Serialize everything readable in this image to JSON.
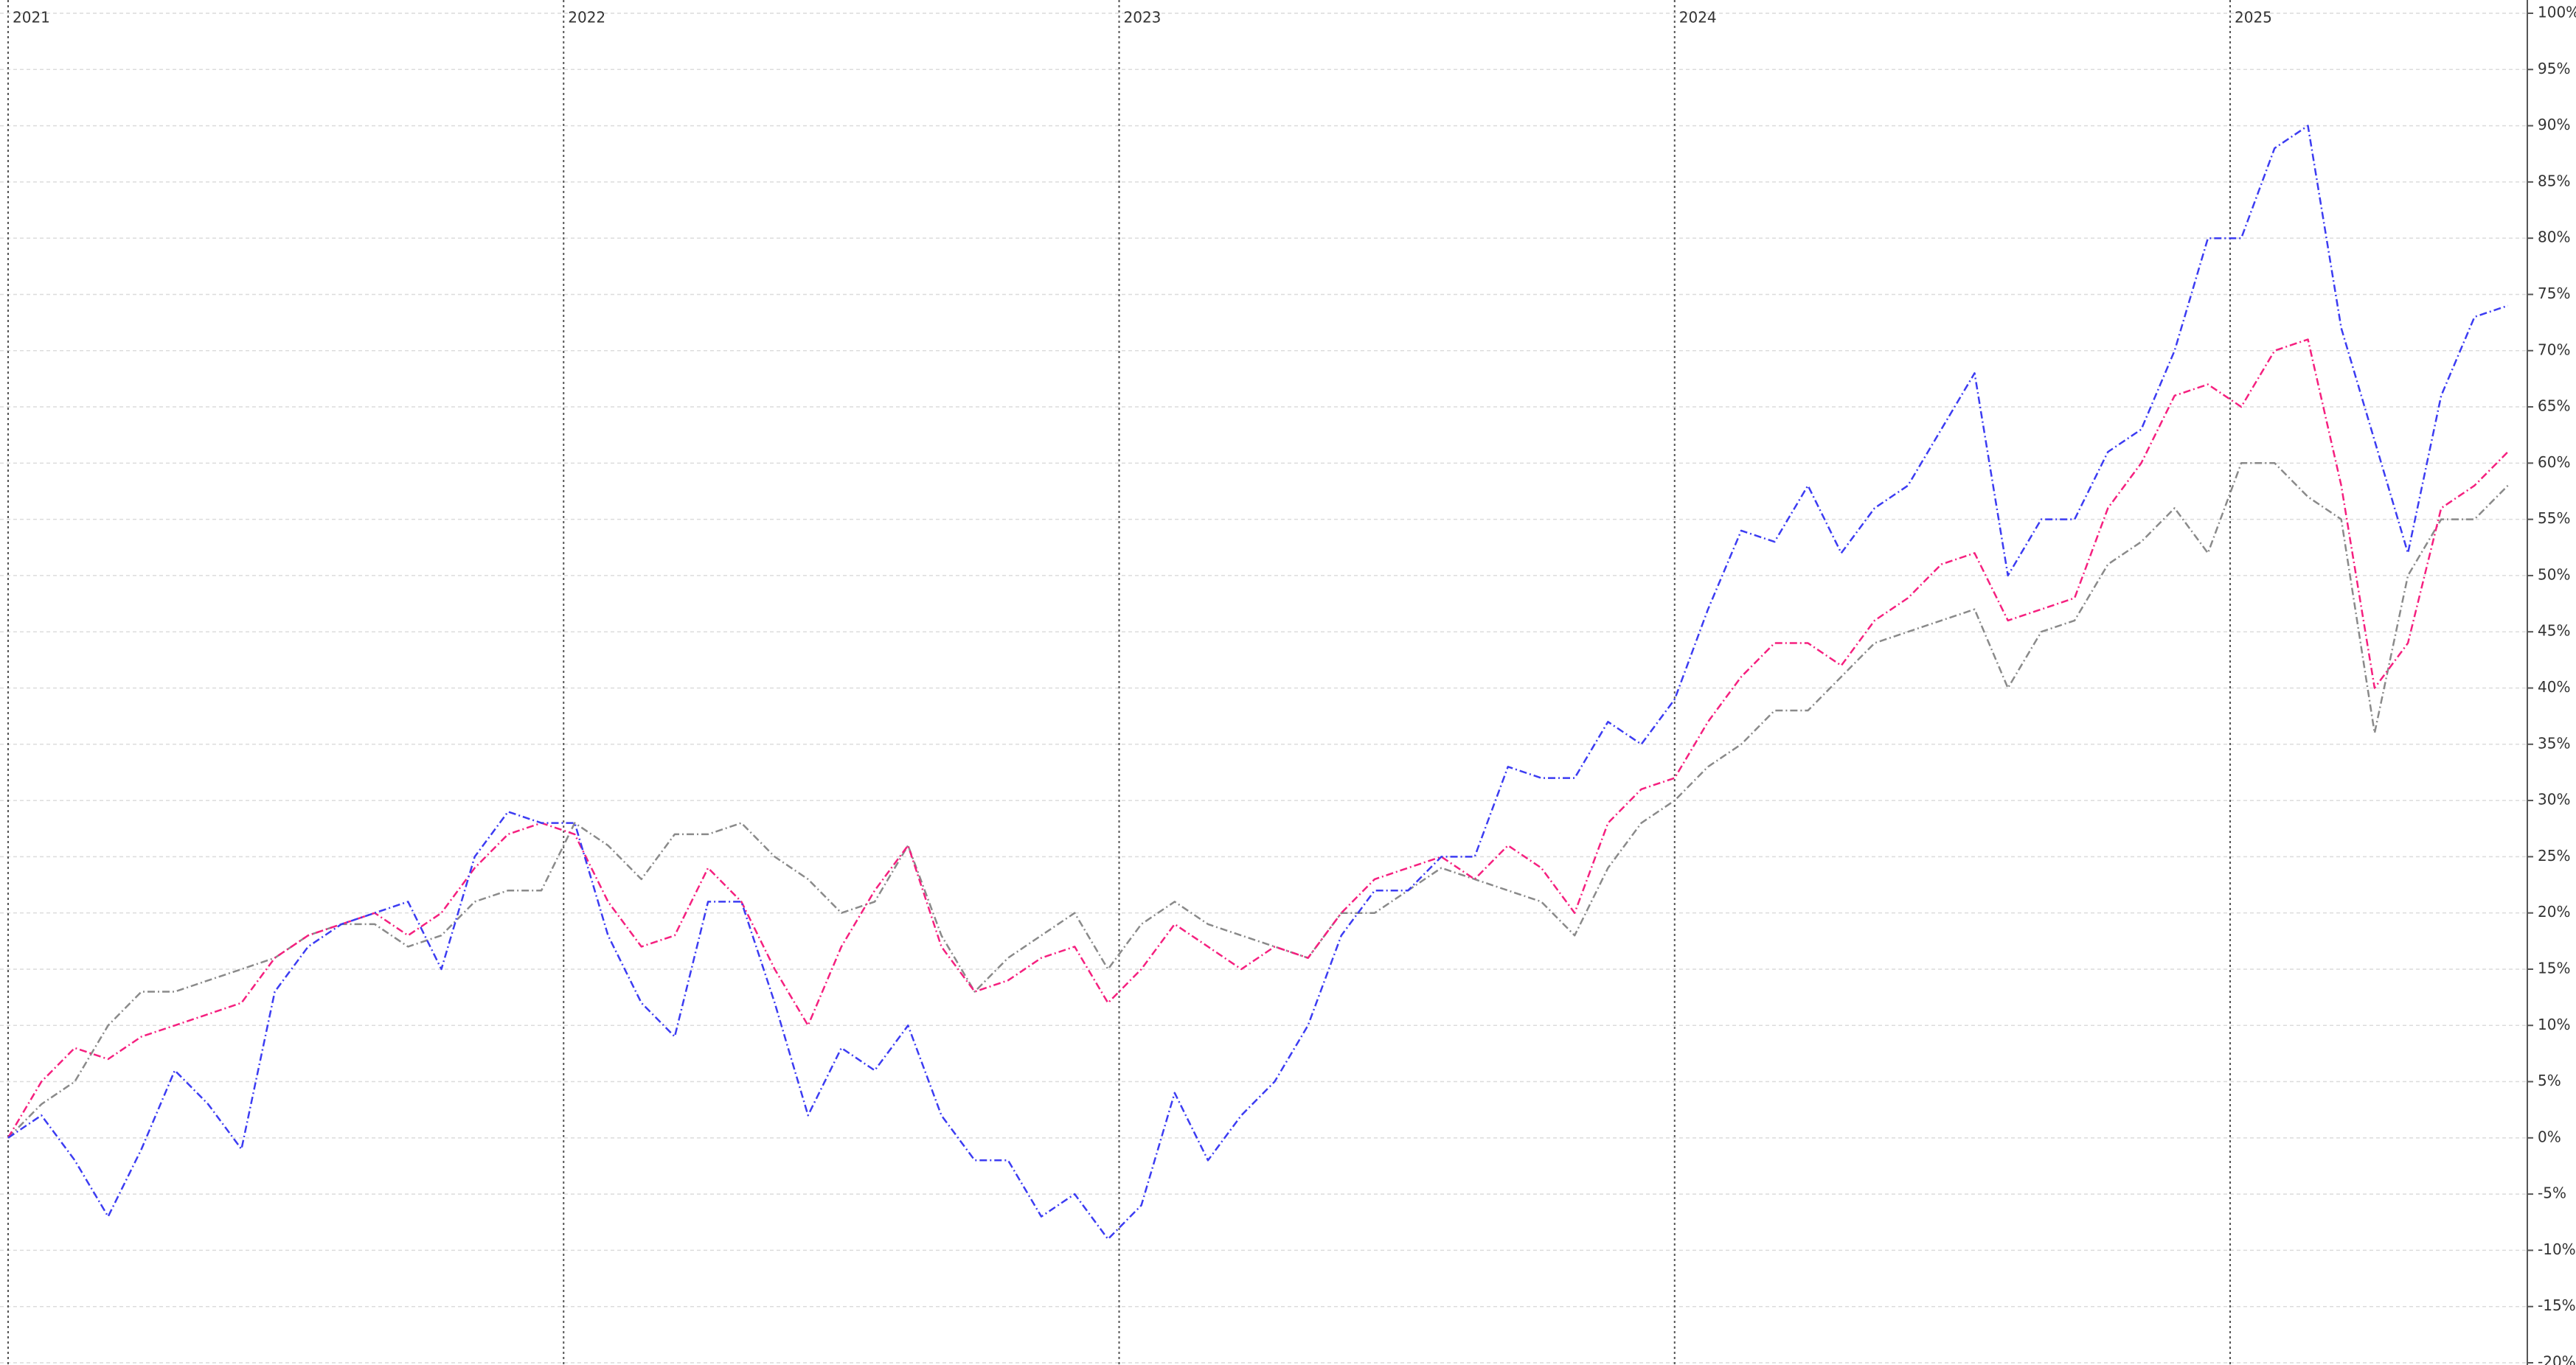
{
  "chart_data": {
    "type": "line",
    "x": [
      2021,
      2021.06,
      2021.12,
      2021.18,
      2021.24,
      2021.3,
      2021.36,
      2021.42,
      2021.48,
      2021.54,
      2021.6,
      2021.66,
      2021.72,
      2021.78,
      2021.84,
      2021.9,
      2021.96,
      2022.02,
      2022.08,
      2022.14,
      2022.2,
      2022.26,
      2022.32,
      2022.38,
      2022.44,
      2022.5,
      2022.56,
      2022.62,
      2022.68,
      2022.74,
      2022.8,
      2022.86,
      2022.92,
      2022.98,
      2023.04,
      2023.1,
      2023.16,
      2023.22,
      2023.28,
      2023.34,
      2023.4,
      2023.46,
      2023.52,
      2023.58,
      2023.64,
      2023.7,
      2023.76,
      2023.82,
      2023.88,
      2023.94,
      2024,
      2024.06,
      2024.12,
      2024.18,
      2024.24,
      2024.3,
      2024.36,
      2024.42,
      2024.48,
      2024.54,
      2024.6,
      2024.66,
      2024.72,
      2024.78,
      2024.84,
      2024.9,
      2024.96,
      2025.02,
      2025.08,
      2025.14,
      2025.2,
      2025.26,
      2025.32,
      2025.38,
      2025.44,
      2025.5
    ],
    "series": [
      {
        "color": "#3c3cf2",
        "values": [
          0,
          2,
          -2,
          -7,
          -1,
          6,
          3,
          -1,
          13,
          17,
          19,
          20,
          21,
          15,
          25,
          29,
          28,
          28,
          18,
          12,
          9,
          21,
          21,
          12,
          2,
          8,
          6,
          10,
          2,
          -2,
          -2,
          -7,
          -5,
          -9,
          -6,
          4,
          -2,
          2,
          5,
          10,
          18,
          22,
          22,
          25,
          25,
          33,
          32,
          32,
          37,
          35,
          39,
          47,
          54,
          53,
          58,
          52,
          56,
          58,
          63,
          68,
          50,
          55,
          55,
          61,
          63,
          70,
          80,
          80,
          88,
          90,
          72,
          62,
          52,
          66,
          73,
          74
        ]
      },
      {
        "color": "#f5207f",
        "values": [
          0,
          5,
          8,
          7,
          9,
          10,
          11,
          12,
          16,
          18,
          19,
          20,
          18,
          20,
          24,
          27,
          28,
          27,
          21,
          17,
          18,
          24,
          21,
          15,
          10,
          17,
          22,
          26,
          17,
          13,
          14,
          16,
          17,
          12,
          15,
          19,
          17,
          15,
          17,
          16,
          20,
          23,
          24,
          25,
          23,
          26,
          24,
          20,
          28,
          31,
          32,
          37,
          41,
          44,
          44,
          42,
          46,
          48,
          51,
          52,
          46,
          47,
          48,
          56,
          60,
          66,
          67,
          65,
          70,
          71,
          58,
          40,
          44,
          56,
          58,
          61
        ]
      },
      {
        "color": "#8a8a8a",
        "values": [
          0,
          3,
          5,
          10,
          13,
          13,
          14,
          15,
          16,
          18,
          19,
          19,
          17,
          18,
          21,
          22,
          22,
          28,
          26,
          23,
          27,
          27,
          28,
          25,
          23,
          20,
          21,
          26,
          18,
          13,
          16,
          18,
          20,
          15,
          19,
          21,
          19,
          18,
          17,
          16,
          20,
          20,
          22,
          24,
          23,
          22,
          21,
          18,
          24,
          28,
          30,
          33,
          35,
          38,
          38,
          41,
          44,
          45,
          46,
          47,
          40,
          45,
          46,
          51,
          53,
          56,
          52,
          60,
          60,
          57,
          55,
          36,
          50,
          55,
          55,
          58
        ]
      }
    ],
    "xlim": [
      2021,
      2025.535
    ],
    "xticks": [
      2021,
      2022,
      2023,
      2024,
      2025
    ],
    "ylim": [
      -20,
      100
    ],
    "yticks": [
      {
        "value": -20,
        "label": "-20%"
      },
      {
        "value": -15,
        "label": "-15%"
      },
      {
        "value": -10,
        "label": "-10%"
      },
      {
        "value": -5,
        "label": "-5%"
      },
      {
        "value": 0,
        "label": "0%"
      },
      {
        "value": 5,
        "label": "5%"
      },
      {
        "value": 10,
        "label": "10%"
      },
      {
        "value": 15,
        "label": "15%"
      },
      {
        "value": 20,
        "label": "20%"
      },
      {
        "value": 25,
        "label": "25%"
      },
      {
        "value": 30,
        "label": "30%"
      },
      {
        "value": 35,
        "label": "35%"
      },
      {
        "value": 40,
        "label": "40%"
      },
      {
        "value": 45,
        "label": "45%"
      },
      {
        "value": 50,
        "label": "50%"
      },
      {
        "value": 55,
        "label": "55%"
      },
      {
        "value": 60,
        "label": "60%"
      },
      {
        "value": 65,
        "label": "65%"
      },
      {
        "value": 70,
        "label": "70%"
      },
      {
        "value": 75,
        "label": "75%"
      },
      {
        "value": 80,
        "label": "80%"
      },
      {
        "value": 85,
        "label": "85%"
      },
      {
        "value": 90,
        "label": "90%"
      },
      {
        "value": 95,
        "label": "95%"
      },
      {
        "value": 100,
        "label": "100%"
      }
    ],
    "grid": true
  }
}
